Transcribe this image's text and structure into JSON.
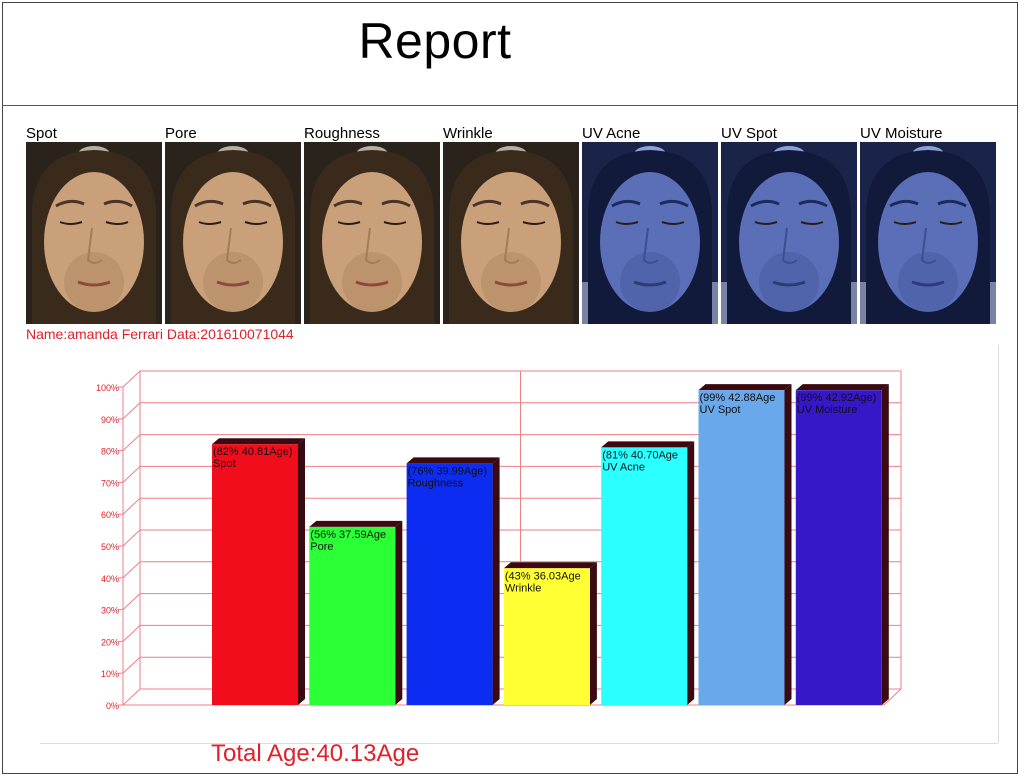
{
  "report": {
    "title": "Report",
    "patient_line": "Name:amanda Ferrari Data:201610071044",
    "total_age": "Total Age:40.13Age"
  },
  "thumbnails": [
    {
      "label": "Spot",
      "light": "white"
    },
    {
      "label": "Pore",
      "light": "white"
    },
    {
      "label": "Roughness",
      "light": "white"
    },
    {
      "label": "Wrinkle",
      "light": "white"
    },
    {
      "label": "UV Acne",
      "light": "uv"
    },
    {
      "label": "UV Spot",
      "light": "uv"
    },
    {
      "label": "UV Moisture",
      "light": "uv"
    }
  ],
  "colors": {
    "accent_red": "#e0202a",
    "grid": "#f07f86",
    "bar_edge": "#3a0a10"
  },
  "chart_data": {
    "type": "bar",
    "categories": [
      "Spot",
      "Pore",
      "Roughness",
      "Wrinkle",
      "UV Acne",
      "UV Spot",
      "UV Moisture"
    ],
    "values": [
      82,
      56,
      76,
      43,
      81,
      99,
      99
    ],
    "data_labels": [
      "(82% 40.81Age)",
      "(56% 37.59Age",
      "(76% 39.99Age)",
      "(43% 36.03Age",
      "(81% 40.70Age",
      "(99% 42.88Age",
      "(99% 42.92Age)"
    ],
    "bar_colors": [
      "#f20d1d",
      "#2bff36",
      "#0d2cf2",
      "#ffff33",
      "#2bffff",
      "#69a8ea",
      "#3718c8"
    ],
    "yticks": [
      "0%",
      "10%",
      "20%",
      "30%",
      "40%",
      "50%",
      "60%",
      "70%",
      "80%",
      "90%",
      "100%"
    ],
    "ylim": [
      0,
      100
    ],
    "grid": true
  }
}
